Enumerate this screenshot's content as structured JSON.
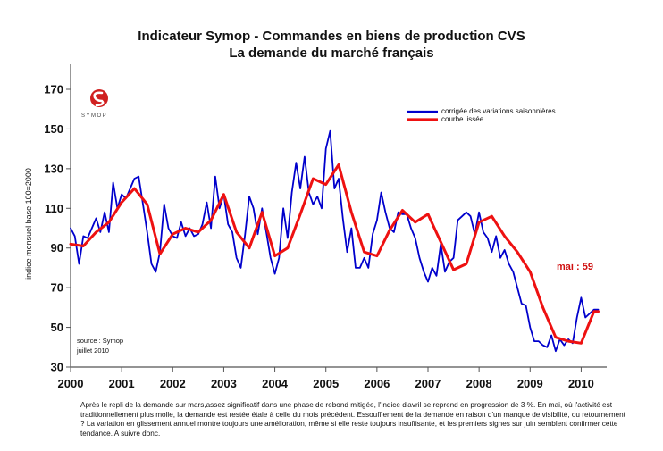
{
  "title_line1": "Indicateur Symop - Commandes en biens de production CVS",
  "title_line2": "La demande du marché français",
  "logo": {
    "text": "SYMOP",
    "color": "#d02020"
  },
  "source_line1": "source : Symop",
  "source_line2": "juillet  2010",
  "annotation": "mai :  59",
  "footnote": "Après le repli de la demande sur mars,assez significatif dans une phase de rebond mitigée, l'indice d'avril se reprend en progression de 3 %. En mai, où l'activité est traditionnellement plus molle, la demande est restée étale à celle du mois précédent. Essoufflement de la demande en raison d'un manque de visibilité, ou retournement ? La variation en glissement annuel montre toujours une amélioration, même si elle reste toujours insuffisante, et les premiers signes sur juin semblent confirmer cette tendance. A suivre donc.",
  "chart_data": {
    "type": "line",
    "title": "Indicateur Symop - Commandes en biens de production CVS",
    "subtitle": "La demande du marché français",
    "ylabel": "indice mensuel base 100=2000",
    "xlabel": "",
    "ylim": [
      30,
      170
    ],
    "xlim": [
      2000.0,
      2010.5
    ],
    "yticks": [
      30,
      50,
      70,
      90,
      110,
      130,
      150,
      170
    ],
    "xticks": [
      "2000",
      "2001",
      "2002",
      "2003",
      "2004",
      "2005",
      "2006",
      "2007",
      "2008",
      "2009",
      "2010"
    ],
    "grid": false,
    "legend_position": "top-right",
    "annotation": "mai :  59",
    "series": [
      {
        "name": "corrigée des variations saisonnières",
        "color": "#0000cc",
        "x": [
          2000.0,
          2000.083,
          2000.167,
          2000.25,
          2000.333,
          2000.417,
          2000.5,
          2000.583,
          2000.667,
          2000.75,
          2000.833,
          2000.917,
          2001.0,
          2001.083,
          2001.167,
          2001.25,
          2001.333,
          2001.417,
          2001.5,
          2001.583,
          2001.667,
          2001.75,
          2001.833,
          2001.917,
          2002.0,
          2002.083,
          2002.167,
          2002.25,
          2002.333,
          2002.417,
          2002.5,
          2002.583,
          2002.667,
          2002.75,
          2002.833,
          2002.917,
          2003.0,
          2003.083,
          2003.167,
          2003.25,
          2003.333,
          2003.417,
          2003.5,
          2003.583,
          2003.667,
          2003.75,
          2003.833,
          2003.917,
          2004.0,
          2004.083,
          2004.167,
          2004.25,
          2004.333,
          2004.417,
          2004.5,
          2004.583,
          2004.667,
          2004.75,
          2004.833,
          2004.917,
          2005.0,
          2005.083,
          2005.167,
          2005.25,
          2005.333,
          2005.417,
          2005.5,
          2005.583,
          2005.667,
          2005.75,
          2005.833,
          2005.917,
          2006.0,
          2006.083,
          2006.167,
          2006.25,
          2006.333,
          2006.417,
          2006.5,
          2006.583,
          2006.667,
          2006.75,
          2006.833,
          2006.917,
          2007.0,
          2007.083,
          2007.167,
          2007.25,
          2007.333,
          2007.417,
          2007.5,
          2007.583,
          2007.667,
          2007.75,
          2007.833,
          2007.917,
          2008.0,
          2008.083,
          2008.167,
          2008.25,
          2008.333,
          2008.417,
          2008.5,
          2008.583,
          2008.667,
          2008.75,
          2008.833,
          2008.917,
          2009.0,
          2009.083,
          2009.167,
          2009.25,
          2009.333,
          2009.417,
          2009.5,
          2009.583,
          2009.667,
          2009.75,
          2009.833,
          2009.917,
          2010.0,
          2010.083,
          2010.167,
          2010.25,
          2010.333
        ],
        "values": [
          100,
          96,
          82,
          96,
          95,
          100,
          105,
          98,
          108,
          98,
          123,
          110,
          117,
          115,
          120,
          125,
          126,
          112,
          98,
          82,
          78,
          88,
          112,
          100,
          96,
          95,
          103,
          96,
          100,
          96,
          97,
          102,
          113,
          100,
          126,
          110,
          117,
          102,
          98,
          85,
          80,
          97,
          116,
          110,
          97,
          110,
          98,
          85,
          77,
          85,
          110,
          95,
          118,
          133,
          120,
          136,
          118,
          112,
          116,
          110,
          140,
          149,
          120,
          125,
          105,
          88,
          100,
          80,
          80,
          85,
          80,
          97,
          104,
          118,
          108,
          100,
          98,
          108,
          107,
          107,
          100,
          95,
          85,
          78,
          73,
          80,
          76,
          92,
          78,
          83,
          85,
          104,
          106,
          108,
          106,
          97,
          108,
          98,
          95,
          88,
          96,
          85,
          89,
          82,
          78,
          70,
          62,
          61,
          50,
          43,
          43,
          41,
          40,
          46,
          38,
          44,
          41,
          44,
          42,
          55,
          65,
          55,
          57,
          59,
          59
        ]
      },
      {
        "name": "courbe lissée",
        "color": "#ee1111",
        "x": [
          2000.0,
          2000.25,
          2000.5,
          2000.75,
          2001.0,
          2001.25,
          2001.5,
          2001.75,
          2002.0,
          2002.25,
          2002.5,
          2002.75,
          2003.0,
          2003.25,
          2003.5,
          2003.75,
          2004.0,
          2004.25,
          2004.5,
          2004.75,
          2005.0,
          2005.25,
          2005.5,
          2005.75,
          2006.0,
          2006.25,
          2006.5,
          2006.75,
          2007.0,
          2007.25,
          2007.5,
          2007.75,
          2008.0,
          2008.25,
          2008.5,
          2008.75,
          2009.0,
          2009.25,
          2009.5,
          2009.75,
          2010.0,
          2010.25,
          2010.333
        ],
        "values": [
          92,
          91,
          98,
          103,
          113,
          120,
          112,
          87,
          97,
          100,
          98,
          104,
          117,
          98,
          90,
          108,
          86,
          90,
          107,
          125,
          122,
          132,
          108,
          88,
          86,
          99,
          109,
          103,
          107,
          93,
          79,
          82,
          103,
          106,
          96,
          88,
          78,
          60,
          45,
          43,
          42,
          58,
          58
        ]
      }
    ]
  }
}
